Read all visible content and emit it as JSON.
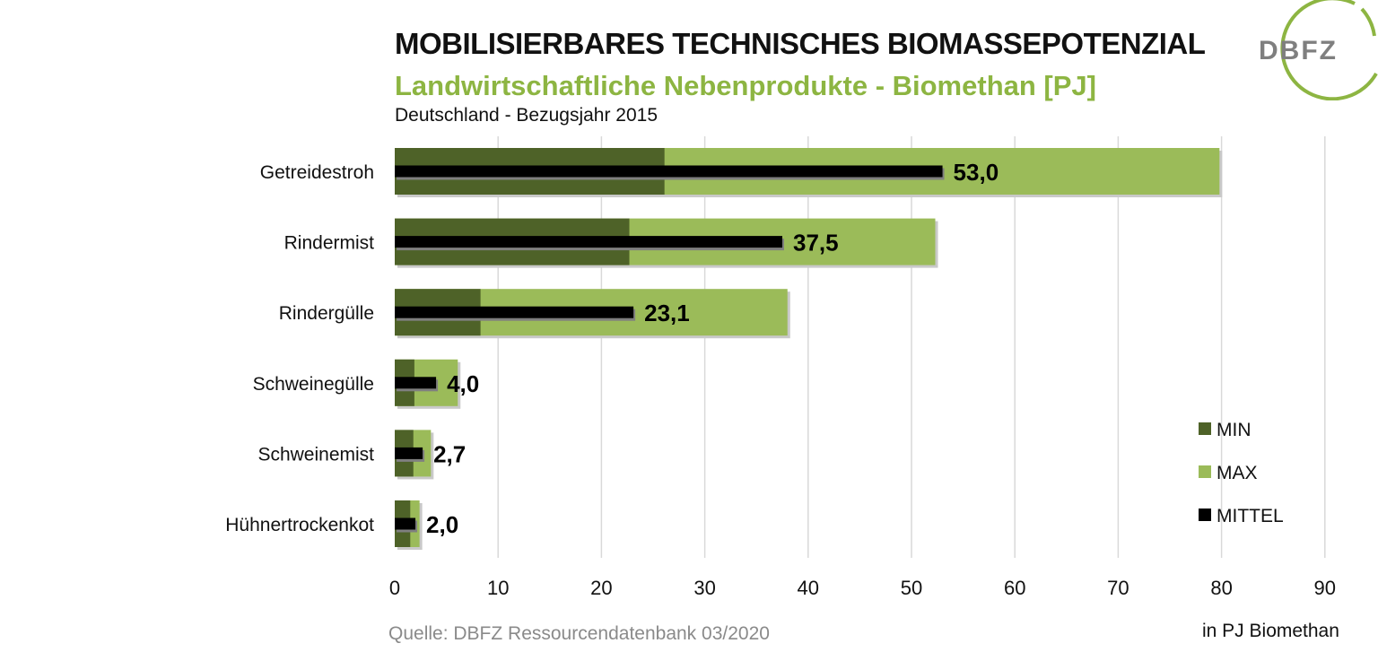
{
  "title": "MOBILISIERBARES TECHNISCHES BIOMASSEPOTENZIAL",
  "subtitle": "Landwirtschaftliche Nebenprodukte - Biomethan [PJ]",
  "region": "Deutschland - Bezugsjahr 2015",
  "source": "Quelle: DBFZ Ressourcendatenbank 03/2020",
  "unit_label": "in PJ Biomethan",
  "logo_text": "DBFZ",
  "colors": {
    "min": "#4e6228",
    "max": "#9bbb59",
    "mittel": "#000000",
    "subtitle": "#8db542",
    "grid": "#d9d9d9"
  },
  "chart_data": {
    "type": "bar",
    "orientation": "horizontal",
    "categories": [
      "Getreidestroh",
      "Rindermist",
      "Rindergülle",
      "Schweinegülle",
      "Schweinemist",
      "Hühnertrockenkot"
    ],
    "series": [
      {
        "name": "MIN",
        "values": [
          26.1,
          22.7,
          8.3,
          1.9,
          1.8,
          1.5
        ]
      },
      {
        "name": "MAX",
        "values": [
          79.8,
          52.3,
          38.0,
          6.1,
          3.5,
          2.4
        ]
      },
      {
        "name": "MITTEL",
        "values": [
          53.0,
          37.5,
          23.1,
          4.0,
          2.7,
          2.0
        ]
      }
    ],
    "data_labels": [
      "53,0",
      "37,5",
      "23,1",
      "4,0",
      "2,7",
      "2,0"
    ],
    "xlim": [
      0,
      90
    ],
    "x_ticks": [
      "0",
      "10",
      "20",
      "30",
      "40",
      "50",
      "60",
      "70",
      "80",
      "90"
    ],
    "grid": true,
    "legend": [
      "MIN",
      "MAX",
      "MITTEL"
    ],
    "legend_position": "bottom-right"
  }
}
